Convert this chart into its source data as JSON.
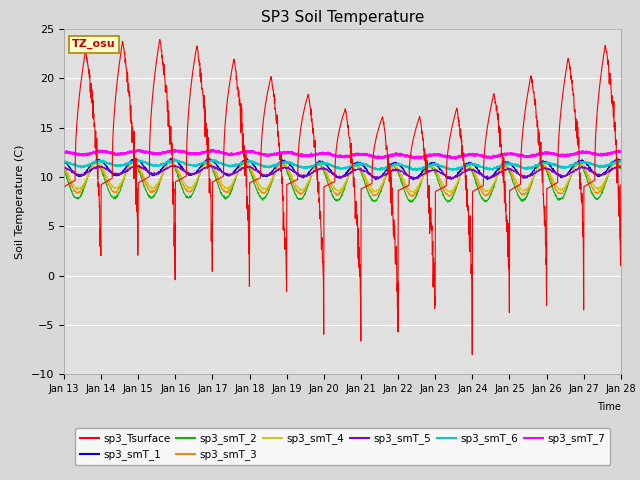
{
  "title": "SP3 Soil Temperature",
  "ylabel": "Soil Temperature (C)",
  "xlabel": "Time",
  "ylim": [
    -10,
    25
  ],
  "n_days": 15,
  "series_colors": {
    "sp3_Tsurface": "#ff0000",
    "sp3_smT_1": "#0000dd",
    "sp3_smT_2": "#00bb00",
    "sp3_smT_3": "#ff8800",
    "sp3_smT_4": "#cccc00",
    "sp3_smT_5": "#8800cc",
    "sp3_smT_6": "#00cccc",
    "sp3_smT_7": "#ff00ff"
  },
  "x_tick_labels": [
    "Jan 13",
    "Jan 14",
    "Jan 15",
    "Jan 16",
    "Jan 17",
    "Jan 18",
    "Jan 19",
    "Jan 20",
    "Jan 21",
    "Jan 22",
    "Jan 23",
    "Jan 24",
    "Jan 25",
    "Jan 26",
    "Jan 27",
    "Jan 28"
  ],
  "tz_label": "TZ_osu",
  "figsize": [
    6.4,
    4.8
  ],
  "dpi": 100
}
